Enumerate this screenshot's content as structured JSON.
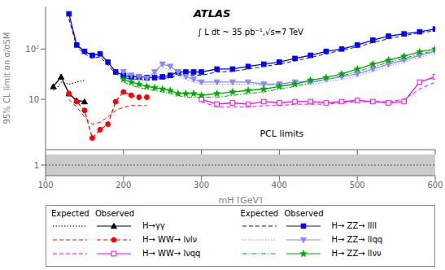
{
  "chart_data": [
    {
      "type": "line",
      "y_label": "95% CL limit on σ/σSM",
      "log": "y",
      "xlim": [
        100,
        600
      ],
      "xticks": [
        100,
        200,
        300,
        400,
        500,
        600
      ],
      "ylim": [
        1,
        700
      ],
      "yticks": [
        10,
        {
          "value": 100,
          "label": "10²"
        }
      ],
      "tick_labels": "y",
      "legend": "bottom",
      "legend_headers": [
        "Expected",
        "Observed"
      ],
      "annotations": [
        "ATLAS",
        "∫ L dt ~ 35 pb⁻¹,√s=7 TeV",
        "PCL limits"
      ],
      "series": [
        {
          "name": "H→γγ",
          "color": "#000000",
          "marker": "triangle",
          "line_style": "solid",
          "x": [
            110,
            120,
            130,
            140,
            150
          ],
          "values": [
            18,
            28,
            13,
            9.5,
            9.0
          ],
          "expected": {
            "x": [
              110,
              115,
              120,
              130,
              140,
              150
            ],
            "values": [
              15,
              17,
              22,
              20,
              22,
              24
            ],
            "line_style": "dotted"
          }
        },
        {
          "name": "H→ WW→ lνlν",
          "color": "#ff0000",
          "marker": "circle",
          "line_style": "dashed",
          "x": [
            130,
            140,
            150,
            160,
            170,
            180,
            190,
            200,
            210,
            220,
            230
          ],
          "values": [
            13,
            9,
            6,
            1.7,
            2.5,
            3.2,
            9,
            14,
            12,
            11,
            11
          ],
          "expected": {
            "x": [
              130,
              140,
              150,
              160,
              170,
              180,
              190,
              200,
              210,
              220,
              230
            ],
            "values": [
              10,
              7,
              4.5,
              3.2,
              3.5,
              4.5,
              6,
              7,
              7.5,
              7.5,
              7.5
            ],
            "line_style": "dashed"
          }
        },
        {
          "name": "H→ WW→ lνqq",
          "color": "#ff00ff",
          "marker": "open_square",
          "line_style": "solid",
          "x": [
            300,
            320,
            340,
            360,
            380,
            400,
            420,
            440,
            460,
            480,
            500,
            520,
            540,
            560,
            580,
            600
          ],
          "values": [
            10,
            8,
            8.5,
            8,
            9,
            8.5,
            9,
            9,
            8.5,
            9,
            9.5,
            9,
            8.5,
            9,
            22,
            28
          ],
          "expected": {
            "x": [
              300,
              320,
              340,
              360,
              380,
              400,
              420,
              440,
              460,
              480,
              500,
              520,
              540,
              560,
              580,
              600
            ],
            "values": [
              9,
              7,
              7,
              7,
              7.5,
              7.5,
              8,
              8,
              8,
              8.5,
              9,
              9,
              9,
              10,
              16,
              22
            ],
            "line_style": "dashed"
          }
        },
        {
          "name": "H→ ZZ→ llll",
          "color": "#0000ff",
          "marker": "square",
          "line_style": "solid",
          "x": [
            130,
            140,
            150,
            160,
            170,
            180,
            190,
            200,
            210,
            220,
            230,
            240,
            250,
            260,
            270,
            280,
            290,
            300,
            320,
            340,
            360,
            380,
            400,
            420,
            440,
            460,
            480,
            500,
            520,
            540,
            560,
            580,
            600
          ],
          "values": [
            500,
            120,
            90,
            75,
            80,
            55,
            35,
            30,
            28,
            28,
            27,
            27,
            28,
            30,
            35,
            35,
            35,
            35,
            40,
            40,
            45,
            50,
            55,
            65,
            75,
            90,
            100,
            120,
            150,
            180,
            200,
            220,
            250
          ],
          "expected": {
            "x": [
              130,
              140,
              150,
              160,
              170,
              180,
              190,
              200,
              210,
              220,
              230,
              240,
              250,
              260,
              270,
              280,
              290,
              300,
              320,
              340,
              360,
              380,
              400,
              420,
              440,
              460,
              480,
              500,
              520,
              540,
              560,
              580,
              600
            ],
            "values": [
              400,
              110,
              80,
              65,
              70,
              48,
              32,
              27,
              25,
              25,
              24,
              25,
              26,
              27,
              30,
              30,
              30,
              30,
              35,
              36,
              40,
              45,
              50,
              58,
              68,
              80,
              95,
              110,
              135,
              160,
              185,
              210,
              230
            ],
            "line_style": "dashed"
          }
        },
        {
          "name": "H→ ZZ→ llqq",
          "color": "#8888ff",
          "marker": "triangle_down",
          "line_style": "solid",
          "x": [
            200,
            210,
            220,
            230,
            240,
            250,
            260,
            270,
            280,
            290,
            300,
            320,
            340,
            360,
            380,
            400,
            420,
            440,
            460,
            480,
            500,
            520,
            540,
            560,
            580,
            600
          ],
          "values": [
            35,
            30,
            28,
            26,
            35,
            50,
            45,
            35,
            28,
            25,
            22,
            22,
            22,
            22,
            20,
            20,
            22,
            22,
            25,
            28,
            32,
            40,
            50,
            60,
            75,
            90
          ],
          "expected": {
            "x": [
              200,
              210,
              220,
              230,
              240,
              250,
              260,
              270,
              280,
              290,
              300,
              320,
              340,
              360,
              380,
              400,
              420,
              440,
              460,
              480,
              500,
              520,
              540,
              560,
              580,
              600
            ],
            "values": [
              30,
              26,
              24,
              22,
              30,
              42,
              38,
              30,
              25,
              22,
              20,
              20,
              20,
              20,
              19,
              19,
              20,
              20,
              22,
              25,
              29,
              36,
              45,
              55,
              68,
              82
            ],
            "line_style": "dotted"
          }
        },
        {
          "name": "H→ ZZ→ llνν",
          "color": "#00aa00",
          "marker": "star",
          "line_style": "solid",
          "x": [
            200,
            210,
            220,
            230,
            240,
            250,
            260,
            270,
            280,
            290,
            300,
            320,
            340,
            360,
            380,
            400,
            420,
            440,
            460,
            480,
            500,
            520,
            540,
            560,
            580,
            600
          ],
          "values": [
            25,
            22,
            20,
            18,
            17,
            16,
            15,
            13,
            13,
            13,
            12,
            13,
            14,
            15,
            16,
            18,
            20,
            24,
            27,
            32,
            40,
            50,
            60,
            72,
            88,
            100
          ],
          "expected": {
            "x": [
              200,
              210,
              220,
              230,
              240,
              250,
              260,
              270,
              280,
              290,
              300,
              320,
              340,
              360,
              380,
              400,
              420,
              440,
              460,
              480,
              500,
              520,
              540,
              560,
              580,
              600
            ],
            "values": [
              22,
              19,
              17,
              16,
              15,
              14,
              13,
              12,
              11,
              11,
              11,
              11,
              12,
              13,
              14,
              16,
              18,
              21,
              25,
              29,
              36,
              44,
              54,
              65,
              80,
              92
            ],
            "line_style": "dashdot"
          }
        }
      ]
    },
    {
      "type": "band",
      "x_label": "mH [GeV]",
      "xlim": [
        100,
        600
      ],
      "xticks": [
        100,
        200,
        300,
        400,
        500,
        600
      ],
      "ylim": [
        0.85,
        1.15
      ],
      "yticks": [
        1
      ],
      "band": [
        0.85,
        1.15
      ],
      "reference_line": 1
    }
  ]
}
